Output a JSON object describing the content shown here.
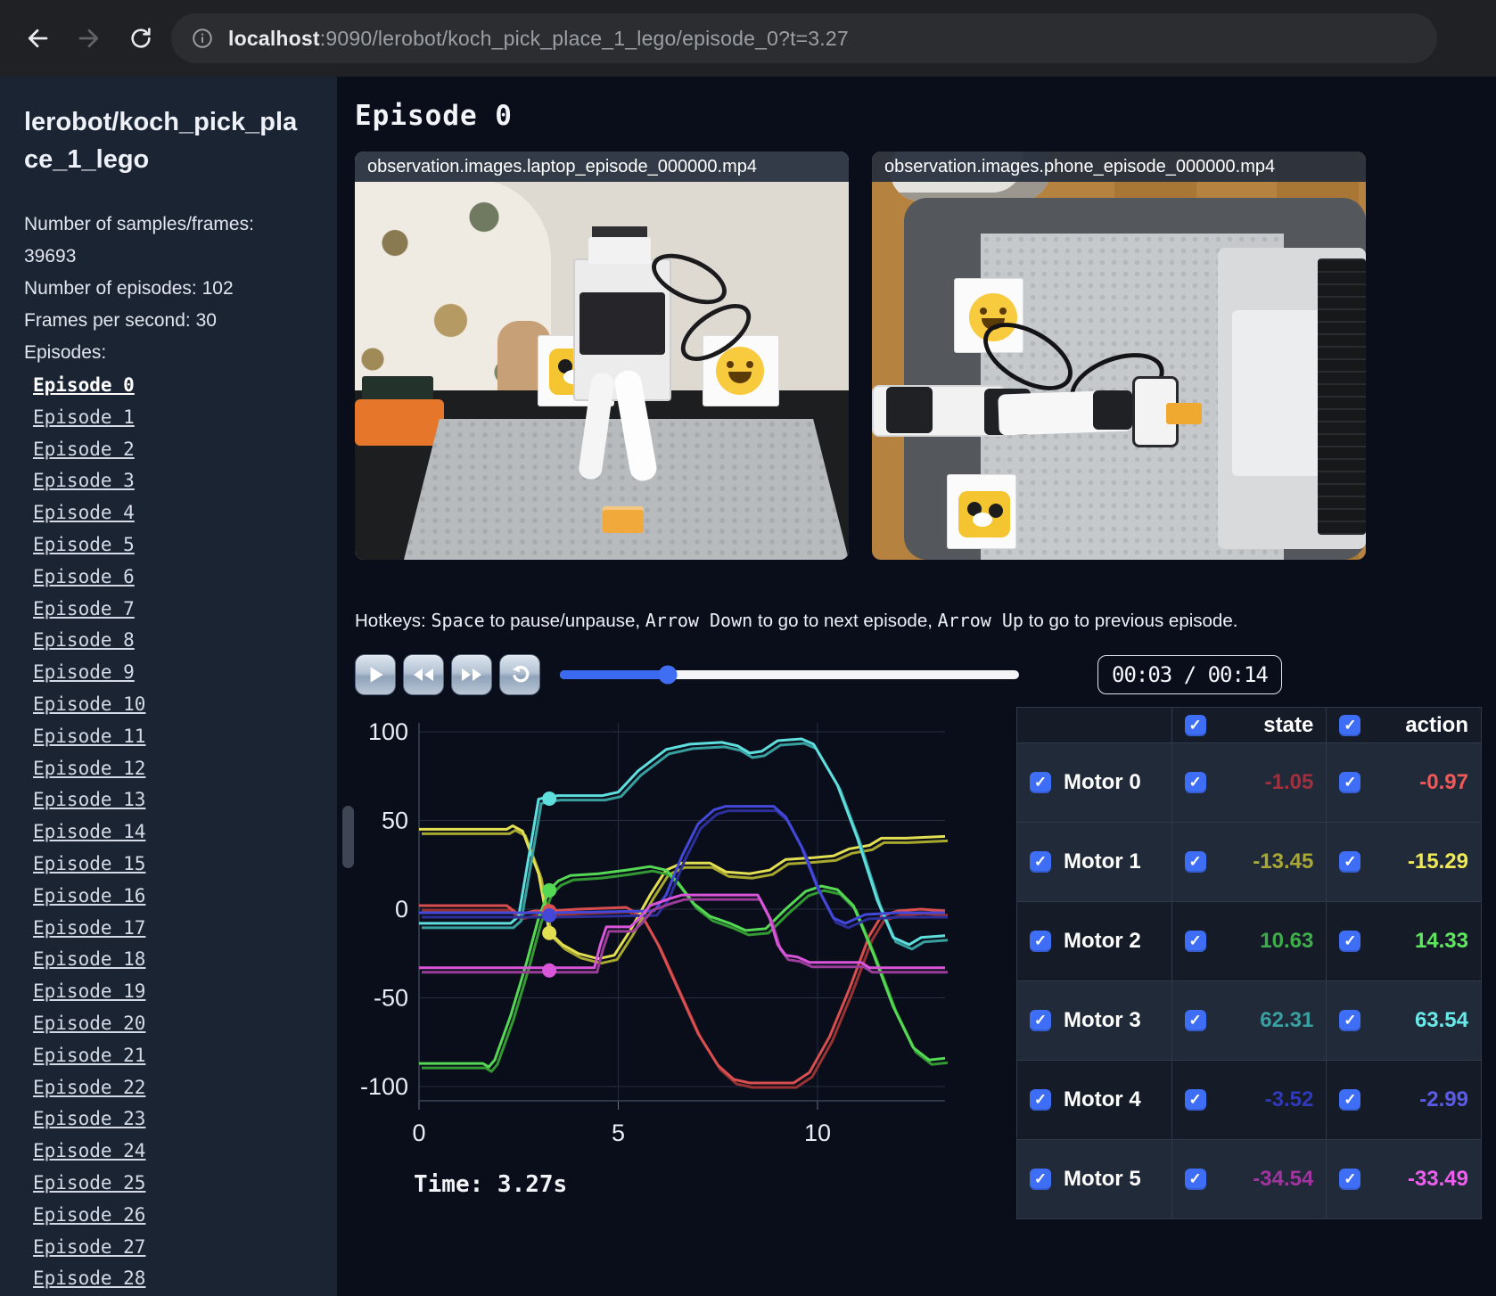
{
  "browser": {
    "url_host": "localhost",
    "url_rest": ":9090/lerobot/koch_pick_place_1_lego/episode_0?t=3.27",
    "icons": [
      "back-arrow",
      "forward-arrow",
      "reload",
      "info-circle"
    ]
  },
  "sidebar": {
    "title": "lerobot/koch_pick_place_1_lego",
    "stats": {
      "samples": "Number of samples/frames: 39693",
      "episodes": "Number of episodes: 102",
      "fps": "Frames per second: 30"
    },
    "episodes_label": "Episodes:",
    "active_episode": "Episode 0",
    "episodes": [
      "Episode 0",
      "Episode 1",
      "Episode 2",
      "Episode 3",
      "Episode 4",
      "Episode 5",
      "Episode 6",
      "Episode 7",
      "Episode 8",
      "Episode 9",
      "Episode 10",
      "Episode 11",
      "Episode 12",
      "Episode 13",
      "Episode 14",
      "Episode 15",
      "Episode 16",
      "Episode 17",
      "Episode 18",
      "Episode 19",
      "Episode 20",
      "Episode 21",
      "Episode 22",
      "Episode 23",
      "Episode 24",
      "Episode 25",
      "Episode 26",
      "Episode 27",
      "Episode 28"
    ]
  },
  "main": {
    "heading": "Episode 0",
    "videos": [
      {
        "title": "observation.images.laptop_episode_000000.mp4"
      },
      {
        "title": "observation.images.phone_episode_000000.mp4"
      }
    ],
    "hotkeys_segments": [
      {
        "text": "Hotkeys: ",
        "mono": false
      },
      {
        "text": "Space",
        "mono": true
      },
      {
        "text": " to pause/unpause, ",
        "mono": false
      },
      {
        "text": "Arrow Down",
        "mono": true
      },
      {
        "text": " to go to next episode, ",
        "mono": false
      },
      {
        "text": "Arrow Up",
        "mono": true
      },
      {
        "text": " to go to previous episode.",
        "mono": false
      }
    ],
    "controls": {
      "icons": [
        "play",
        "rewind",
        "fast-forward",
        "loop"
      ],
      "progress_pct": 23.5,
      "time_display": "00:03 / 00:14"
    },
    "time_label": "Time: 3.27s"
  },
  "table": {
    "state_header": "state",
    "action_header": "action",
    "rows": [
      {
        "label": "Motor 0",
        "state": "-1.05",
        "action": "-0.97",
        "state_color": "#a03040",
        "action_color": "#f25858"
      },
      {
        "label": "Motor 1",
        "state": "-13.45",
        "action": "-15.29",
        "state_color": "#a8a832",
        "action_color": "#efea55"
      },
      {
        "label": "Motor 2",
        "state": "10.63",
        "action": "14.33",
        "state_color": "#3dae49",
        "action_color": "#5fe85f"
      },
      {
        "label": "Motor 3",
        "state": "62.31",
        "action": "63.54",
        "state_color": "#3a9fa0",
        "action_color": "#69e9e9"
      },
      {
        "label": "Motor 4",
        "state": "-3.52",
        "action": "-2.99",
        "state_color": "#2f3ab8",
        "action_color": "#5b5be8"
      },
      {
        "label": "Motor 5",
        "state": "-34.54",
        "action": "-33.49",
        "state_color": "#a035a0",
        "action_color": "#ef5fef"
      }
    ]
  },
  "chart_data": {
    "type": "line",
    "title": "",
    "xlabel": "",
    "ylabel": "",
    "x_ticks": [
      0,
      5,
      10
    ],
    "y_ticks": [
      100,
      50,
      0,
      -50,
      -100
    ],
    "xlim": [
      0,
      13.2
    ],
    "ylim": [
      -100,
      100
    ],
    "grid": true,
    "legend": "none (colors match table rows)",
    "current_time": 3.27,
    "series": [
      {
        "name": "Motor 0 action",
        "pair": "state drawn as darker twin line",
        "color": "#d94f4f",
        "state_color": "#993333",
        "marker_state_value": -1.05,
        "points": [
          [
            0,
            2
          ],
          [
            2.2,
            2
          ],
          [
            2.5,
            -3
          ],
          [
            2.9,
            -1
          ],
          [
            3.27,
            -1
          ],
          [
            4.0,
            0
          ],
          [
            5.2,
            1
          ],
          [
            5.6,
            -4
          ],
          [
            6.0,
            -20
          ],
          [
            6.5,
            -45
          ],
          [
            7.0,
            -70
          ],
          [
            7.5,
            -88
          ],
          [
            7.9,
            -96
          ],
          [
            8.3,
            -98
          ],
          [
            9.4,
            -98
          ],
          [
            9.8,
            -92
          ],
          [
            10.3,
            -72
          ],
          [
            10.8,
            -45
          ],
          [
            11.3,
            -15
          ],
          [
            11.6,
            -4
          ],
          [
            12.0,
            -1
          ],
          [
            12.6,
            0
          ],
          [
            13.2,
            -1
          ]
        ]
      },
      {
        "name": "Motor 1 action",
        "color": "#e3df52",
        "state_color": "#a8a82e",
        "marker_state_value": -13.45,
        "points": [
          [
            0,
            45
          ],
          [
            2.2,
            45
          ],
          [
            2.35,
            47
          ],
          [
            2.6,
            44
          ],
          [
            3.0,
            20
          ],
          [
            3.27,
            -13
          ],
          [
            3.6,
            -20
          ],
          [
            4.0,
            -25
          ],
          [
            4.5,
            -28
          ],
          [
            4.9,
            -26
          ],
          [
            5.3,
            -12
          ],
          [
            5.8,
            8
          ],
          [
            6.2,
            22
          ],
          [
            6.6,
            26
          ],
          [
            7.3,
            26
          ],
          [
            7.7,
            21
          ],
          [
            8.3,
            20
          ],
          [
            8.8,
            22
          ],
          [
            9.2,
            28
          ],
          [
            9.9,
            29
          ],
          [
            10.4,
            30
          ],
          [
            10.8,
            34
          ],
          [
            11.3,
            36
          ],
          [
            11.6,
            40
          ],
          [
            12.2,
            40
          ],
          [
            13.2,
            41
          ]
        ]
      },
      {
        "name": "Motor 2 action",
        "color": "#55d955",
        "state_color": "#339933",
        "marker_state_value": 10.63,
        "points": [
          [
            0,
            -87
          ],
          [
            1.6,
            -87
          ],
          [
            1.75,
            -89
          ],
          [
            1.9,
            -85
          ],
          [
            2.3,
            -60
          ],
          [
            2.7,
            -30
          ],
          [
            3.0,
            -5
          ],
          [
            3.27,
            11
          ],
          [
            3.5,
            16
          ],
          [
            3.8,
            19
          ],
          [
            4.5,
            20
          ],
          [
            5.2,
            22
          ],
          [
            5.8,
            24
          ],
          [
            6.2,
            22
          ],
          [
            6.5,
            15
          ],
          [
            6.9,
            3
          ],
          [
            7.3,
            -4
          ],
          [
            7.8,
            -8
          ],
          [
            8.2,
            -12
          ],
          [
            8.7,
            -11
          ],
          [
            9.2,
            0
          ],
          [
            9.7,
            10
          ],
          [
            10.1,
            13
          ],
          [
            10.5,
            11
          ],
          [
            10.9,
            2
          ],
          [
            11.4,
            -25
          ],
          [
            11.9,
            -55
          ],
          [
            12.4,
            -78
          ],
          [
            12.8,
            -85
          ],
          [
            13.2,
            -84
          ]
        ]
      },
      {
        "name": "Motor 3 action",
        "color": "#5fdede",
        "state_color": "#389f9f",
        "marker_state_value": 62.31,
        "points": [
          [
            0,
            -8
          ],
          [
            2.3,
            -8
          ],
          [
            2.5,
            -4
          ],
          [
            3.0,
            62
          ],
          [
            3.27,
            63.5
          ],
          [
            3.5,
            64
          ],
          [
            4.6,
            64
          ],
          [
            5.0,
            66
          ],
          [
            5.5,
            78
          ],
          [
            6.2,
            90
          ],
          [
            6.8,
            93
          ],
          [
            7.6,
            94
          ],
          [
            8.0,
            92
          ],
          [
            8.3,
            88
          ],
          [
            8.6,
            89
          ],
          [
            9.0,
            95
          ],
          [
            9.6,
            96
          ],
          [
            9.9,
            93
          ],
          [
            10.5,
            70
          ],
          [
            11.0,
            40
          ],
          [
            11.5,
            5
          ],
          [
            11.9,
            -16
          ],
          [
            12.3,
            -20
          ],
          [
            12.6,
            -16
          ],
          [
            13.2,
            -15
          ]
        ]
      },
      {
        "name": "Motor 4 action",
        "color": "#4348d9",
        "state_color": "#2d2f99",
        "marker_state_value": -3.52,
        "points": [
          [
            0,
            -2
          ],
          [
            3.27,
            -2
          ],
          [
            5.9,
            -1
          ],
          [
            6.2,
            8
          ],
          [
            6.6,
            30
          ],
          [
            7.0,
            48
          ],
          [
            7.4,
            56
          ],
          [
            7.7,
            58
          ],
          [
            8.9,
            58
          ],
          [
            9.2,
            52
          ],
          [
            9.6,
            35
          ],
          [
            10.0,
            12
          ],
          [
            10.4,
            -5
          ],
          [
            10.7,
            -8
          ],
          [
            11.2,
            -3
          ],
          [
            12.0,
            -2
          ],
          [
            13.2,
            -2
          ]
        ]
      },
      {
        "name": "Motor 5 action",
        "color": "#d955d9",
        "state_color": "#993d99",
        "marker_state_value": -34.54,
        "points": [
          [
            0,
            -33
          ],
          [
            4.4,
            -33
          ],
          [
            4.55,
            -20
          ],
          [
            4.7,
            -10
          ],
          [
            5.3,
            -10
          ],
          [
            5.5,
            -6
          ],
          [
            5.8,
            2
          ],
          [
            6.3,
            6
          ],
          [
            6.6,
            8
          ],
          [
            8.5,
            8
          ],
          [
            8.8,
            -5
          ],
          [
            9.0,
            -20
          ],
          [
            9.2,
            -26
          ],
          [
            9.5,
            -27
          ],
          [
            9.8,
            -30
          ],
          [
            11.1,
            -30
          ],
          [
            11.3,
            -33
          ],
          [
            13.2,
            -33
          ]
        ]
      }
    ]
  }
}
